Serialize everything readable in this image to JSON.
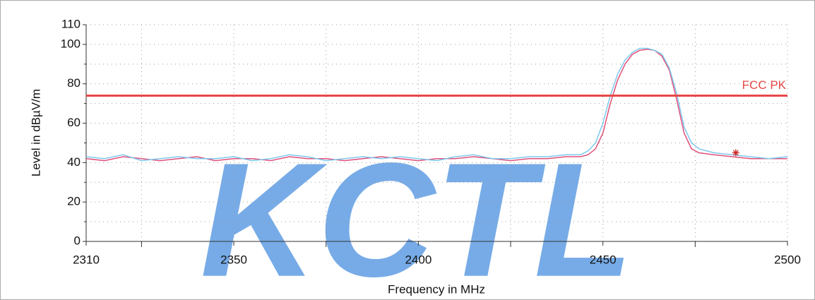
{
  "chart_data": {
    "type": "line",
    "watermark": "KCTL",
    "x_label": "Frequency in MHz",
    "y_label": "Level in dBµV/m",
    "x": [
      2310,
      2315,
      2320,
      2325,
      2330,
      2335,
      2340,
      2345,
      2350,
      2355,
      2360,
      2365,
      2370,
      2375,
      2380,
      2385,
      2390,
      2395,
      2400,
      2405,
      2410,
      2415,
      2420,
      2425,
      2430,
      2435,
      2440,
      2444,
      2446,
      2448,
      2450,
      2452,
      2454,
      2456,
      2458,
      2460,
      2462,
      2464,
      2466,
      2468,
      2470,
      2472,
      2474,
      2476,
      2480,
      2485,
      2490,
      2495,
      2500
    ],
    "series": [
      {
        "color": "#e0507a",
        "values": [
          42,
          41,
          43,
          42,
          41,
          42,
          43,
          41,
          42,
          42,
          41,
          43,
          42,
          42,
          41,
          42,
          43,
          42,
          41,
          42,
          42,
          43,
          42,
          41,
          42,
          42,
          43,
          43,
          44,
          47,
          55,
          70,
          82,
          90,
          95,
          97,
          97.5,
          97,
          94,
          87,
          72,
          55,
          47,
          45,
          44,
          43,
          42,
          42,
          42
        ]
      },
      {
        "color": "#7ec8ee",
        "values": [
          43,
          42,
          44,
          41,
          42,
          43,
          42,
          42,
          43,
          41,
          42,
          44,
          43,
          41,
          42,
          43,
          42,
          43,
          42,
          41,
          43,
          44,
          42,
          42,
          43,
          43,
          44,
          44,
          46,
          50,
          60,
          74,
          85,
          92,
          96,
          98,
          98,
          97,
          95,
          88,
          75,
          58,
          50,
          47,
          45,
          44,
          43,
          42,
          43
        ]
      }
    ],
    "limit_lines": [
      {
        "name": "FCC PK",
        "value": 74,
        "color": "#e84848"
      }
    ],
    "marker": {
      "x": 2486,
      "y": 45,
      "color": "#c81e1e"
    },
    "xlim": [
      2310,
      2500
    ],
    "xticks": [
      2310,
      2350,
      2400,
      2450,
      2500
    ],
    "xminor": [
      2325,
      2375,
      2425,
      2475
    ],
    "ylim": [
      0,
      110
    ],
    "yticks": [
      0,
      20,
      40,
      60,
      80,
      100,
      110
    ],
    "yminor": [
      10,
      30,
      50,
      70,
      90
    ],
    "grid": true
  }
}
